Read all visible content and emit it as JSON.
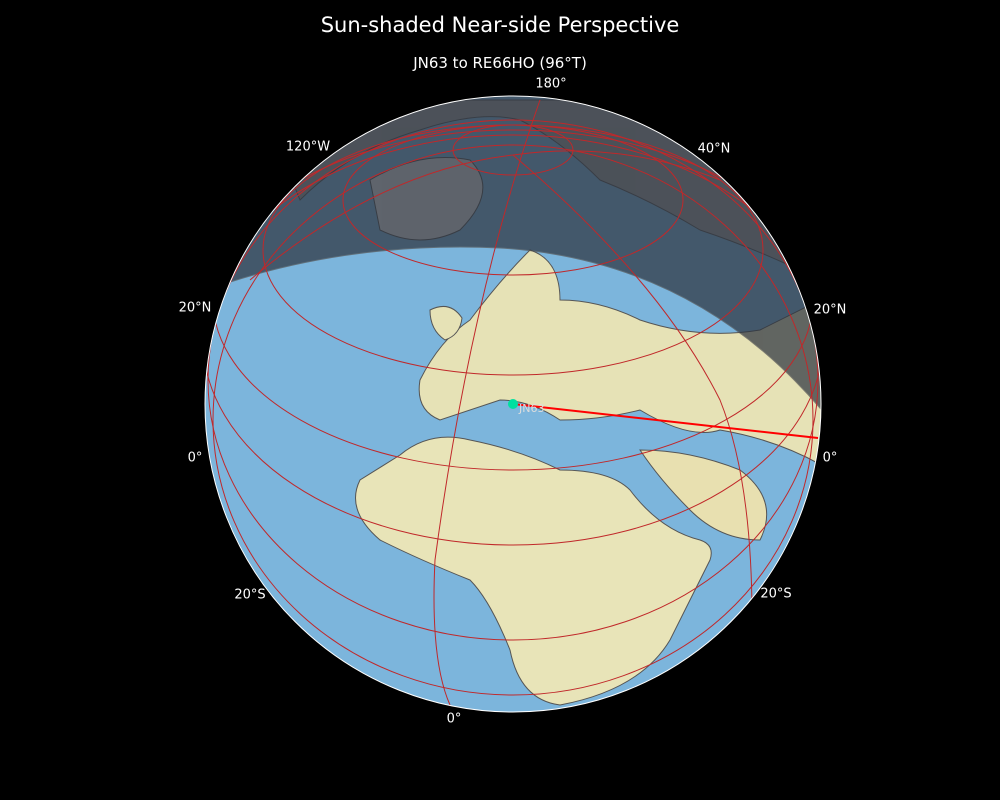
{
  "title": "Sun-shaded Near-side Perspective",
  "subtitle": "JN63 to RE66HO (96°T)",
  "grid_labels": {
    "top": "180°",
    "top_left": "120°W",
    "top_right": "40°N",
    "left_upper": "20°N",
    "right_upper": "20°N",
    "left_mid": "0°",
    "right_mid": "0°",
    "left_lower": "20°S",
    "right_lower": "20°S",
    "bottom": "0°"
  },
  "marker": {
    "label": "JN63",
    "color": "#00e0a0"
  },
  "colors": {
    "ocean": "#7cb5dc",
    "land": "#e8e4b8",
    "night": "#3a3f44",
    "graticule": "#c0282a",
    "path": "#ff0000"
  }
}
